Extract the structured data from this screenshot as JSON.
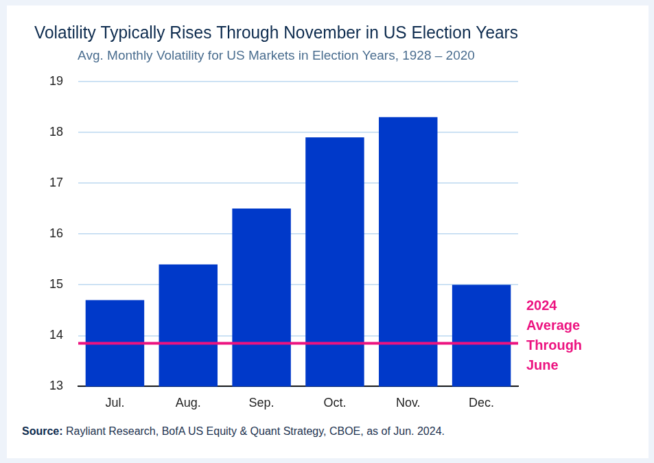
{
  "chart_data": {
    "type": "bar",
    "title": "Volatility Typically Rises Through November in US Election Years",
    "subtitle": "Avg. Monthly Volatility for US Markets in Election Years, 1928 – 2020",
    "categories": [
      "Jul.",
      "Aug.",
      "Sep.",
      "Oct.",
      "Nov.",
      "Dec."
    ],
    "values": [
      14.7,
      15.4,
      16.5,
      17.9,
      18.3,
      15.0
    ],
    "color": "#0039c9",
    "ylim": [
      13,
      19
    ],
    "yticks": [
      13,
      14,
      15,
      16,
      17,
      18,
      19
    ],
    "grid": true,
    "reference_line": {
      "value": 13.85,
      "label": "2024 Average Through June",
      "color": "#ec1380"
    },
    "source": "Source: Rayliant Research, BofA US Equity & Quant Strategy, CBOE, as of Jun. 2024."
  }
}
